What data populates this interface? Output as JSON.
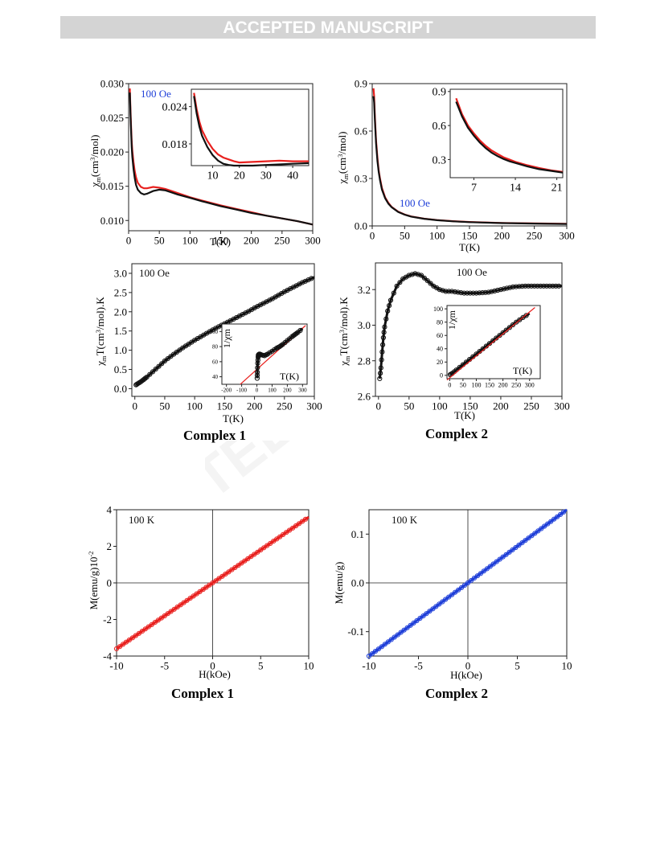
{
  "header": {
    "banner": "ACCEPTED MANUSCRIPT"
  },
  "colors": {
    "red": "#e8201e",
    "black": "#111111",
    "blue": "#1f3fd8",
    "banner_bg": "#d4d4d4",
    "watermark": "#f4f4f4"
  },
  "watermark_text": "TEL",
  "captions": {
    "mid_left": "Complex 1",
    "mid_right": "Complex 2",
    "bot_left": "Complex 1",
    "bot_right": "Complex 2"
  },
  "chart_data": [
    {
      "id": "p1",
      "type": "line",
      "xlabel": "T(K)",
      "ylabel": "χm(cm3/mol)",
      "xlim": [
        0,
        300
      ],
      "ylim": [
        0.0085,
        0.03
      ],
      "xticks": [
        0,
        50,
        100,
        150,
        200,
        250,
        300
      ],
      "yticks": [
        0.01,
        0.015,
        0.02,
        0.025,
        0.03
      ],
      "ytick_labels": [
        "0.010",
        "0.015",
        "0.020",
        "0.025",
        "0.030"
      ],
      "annotation": "100 Oe",
      "series": [
        {
          "color": "red",
          "x": [
            2,
            3,
            4,
            5,
            6,
            8,
            10,
            12,
            15,
            20,
            25,
            30,
            40,
            50,
            60,
            70,
            80,
            100,
            120,
            150,
            175,
            200,
            225,
            250,
            275,
            300
          ],
          "y": [
            0.0293,
            0.0262,
            0.0236,
            0.0216,
            0.0202,
            0.0185,
            0.0172,
            0.0163,
            0.0155,
            0.0149,
            0.0147,
            0.0147,
            0.0149,
            0.0148,
            0.0146,
            0.0143,
            0.014,
            0.0134,
            0.0129,
            0.0122,
            0.0117,
            0.0112,
            0.0107,
            0.0103,
            0.0099,
            0.0094
          ]
        },
        {
          "color": "black",
          "x": [
            2,
            3,
            4,
            5,
            6,
            8,
            10,
            12,
            15,
            20,
            25,
            30,
            40,
            50,
            60,
            70,
            80,
            100,
            120,
            150,
            175,
            200,
            225,
            250,
            275,
            300
          ],
          "y": [
            0.0287,
            0.0255,
            0.0229,
            0.0208,
            0.0193,
            0.0175,
            0.0162,
            0.0152,
            0.0145,
            0.014,
            0.0138,
            0.0139,
            0.0143,
            0.0145,
            0.0144,
            0.0141,
            0.0138,
            0.0133,
            0.0128,
            0.0121,
            0.0116,
            0.0111,
            0.0107,
            0.0103,
            0.0099,
            0.0094
          ]
        }
      ],
      "inset": {
        "xlim": [
          2,
          46
        ],
        "ylim": [
          0.0145,
          0.0268
        ],
        "xticks": [
          10,
          20,
          30,
          40
        ],
        "yticks": [
          0.018,
          0.024
        ],
        "ytick_labels": [
          "0.018",
          "0.024"
        ],
        "series": [
          {
            "color": "red",
            "x": [
              3,
              4,
              5,
              6,
              8,
              10,
              12,
              14,
              16,
              18,
              20,
              25,
              30,
              35,
              40,
              46
            ],
            "y": [
              0.0262,
              0.0236,
              0.0216,
              0.0202,
              0.0185,
              0.0172,
              0.0163,
              0.0158,
              0.0155,
              0.0152,
              0.015,
              0.0151,
              0.0152,
              0.0153,
              0.0152,
              0.0152
            ]
          },
          {
            "color": "black",
            "x": [
              3,
              4,
              5,
              6,
              8,
              10,
              12,
              14,
              16,
              18,
              20,
              25,
              30,
              35,
              40,
              46
            ],
            "y": [
              0.0257,
              0.0229,
              0.0208,
              0.0193,
              0.0175,
              0.0162,
              0.0153,
              0.0148,
              0.0146,
              0.0145,
              0.0145,
              0.0145,
              0.0146,
              0.0147,
              0.0148,
              0.0149
            ]
          }
        ]
      }
    },
    {
      "id": "p2",
      "type": "line",
      "xlabel": "T(K)",
      "ylabel": "χm(cm3/mol)",
      "xlim": [
        0,
        300
      ],
      "ylim": [
        0,
        0.9
      ],
      "xticks": [
        0,
        50,
        100,
        150,
        200,
        250,
        300
      ],
      "yticks": [
        0.0,
        0.3,
        0.6,
        0.9
      ],
      "ytick_labels": [
        "0.0",
        "0.3",
        "0.6",
        "0.9"
      ],
      "annotation": "100 Oe",
      "series": [
        {
          "color": "red",
          "x": [
            2,
            3,
            4,
            5,
            6,
            8,
            10,
            12,
            15,
            20,
            25,
            30,
            40,
            50,
            60,
            80,
            100,
            125,
            150,
            200,
            250,
            300
          ],
          "y": [
            0.87,
            0.82,
            0.71,
            0.62,
            0.54,
            0.43,
            0.35,
            0.3,
            0.24,
            0.18,
            0.145,
            0.12,
            0.09,
            0.072,
            0.06,
            0.046,
            0.037,
            0.03,
            0.025,
            0.019,
            0.016,
            0.013
          ]
        },
        {
          "color": "black",
          "x": [
            2,
            3,
            4,
            5,
            6,
            8,
            10,
            12,
            15,
            20,
            25,
            30,
            40,
            50,
            60,
            80,
            100,
            125,
            150,
            200,
            250,
            300
          ],
          "y": [
            0.82,
            0.78,
            0.68,
            0.6,
            0.52,
            0.41,
            0.34,
            0.29,
            0.23,
            0.175,
            0.14,
            0.118,
            0.088,
            0.071,
            0.059,
            0.045,
            0.036,
            0.029,
            0.024,
            0.018,
            0.015,
            0.012
          ]
        }
      ],
      "inset": {
        "xlim": [
          3,
          22
        ],
        "ylim": [
          0.14,
          0.92
        ],
        "xticks": [
          7,
          14,
          21
        ],
        "yticks": [
          0.3,
          0.6,
          0.9
        ],
        "ytick_labels": [
          "0.3",
          "0.6",
          "0.9"
        ],
        "series": [
          {
            "color": "red",
            "x": [
              4,
              5,
              6,
              7,
              8,
              9,
              10,
              11,
              12,
              13,
              14,
              16,
              18,
              20,
              22
            ],
            "y": [
              0.84,
              0.7,
              0.6,
              0.53,
              0.47,
              0.42,
              0.38,
              0.35,
              0.32,
              0.3,
              0.28,
              0.25,
              0.225,
              0.205,
              0.19
            ]
          },
          {
            "color": "black",
            "x": [
              4,
              5,
              6,
              7,
              8,
              9,
              10,
              11,
              12,
              13,
              14,
              16,
              18,
              20,
              22
            ],
            "y": [
              0.81,
              0.68,
              0.58,
              0.51,
              0.45,
              0.4,
              0.36,
              0.33,
              0.305,
              0.285,
              0.27,
              0.24,
              0.215,
              0.2,
              0.185
            ]
          }
        ]
      }
    },
    {
      "id": "p3",
      "type": "scatter",
      "xlabel": "T(K)",
      "ylabel": "χmT(cm3/mol).K",
      "xlim": [
        -5,
        300
      ],
      "ylim": [
        -0.2,
        3.25
      ],
      "xticks": [
        0,
        50,
        100,
        150,
        200,
        250,
        300
      ],
      "yticks": [
        0.0,
        0.5,
        1.0,
        1.5,
        2.0,
        2.5,
        3.0
      ],
      "ytick_labels": [
        "0.0",
        "0.5",
        "1.0",
        "1.5",
        "2.0",
        "2.5",
        "3.0"
      ],
      "annotation": "100 Oe",
      "series": [
        {
          "color": "black",
          "x": [
            2,
            5,
            10,
            15,
            20,
            30,
            40,
            50,
            60,
            70,
            80,
            90,
            100,
            110,
            120,
            130,
            140,
            150,
            160,
            170,
            180,
            190,
            200,
            210,
            220,
            230,
            240,
            250,
            260,
            270,
            280,
            290,
            300
          ],
          "y": [
            0.1,
            0.13,
            0.18,
            0.24,
            0.3,
            0.44,
            0.58,
            0.72,
            0.84,
            0.95,
            1.06,
            1.16,
            1.26,
            1.35,
            1.44,
            1.53,
            1.61,
            1.69,
            1.77,
            1.85,
            1.93,
            2.01,
            2.1,
            2.18,
            2.26,
            2.34,
            2.43,
            2.52,
            2.6,
            2.68,
            2.76,
            2.83,
            2.9
          ]
        }
      ],
      "inset": {
        "xlabel": "T(K)",
        "ylabel": "1/χm",
        "xlim": [
          -230,
          330
        ],
        "ylim": [
          30,
          110
        ],
        "xticks": [
          -200,
          -100,
          0,
          100,
          200,
          300
        ],
        "yticks": [
          40,
          60,
          80,
          100
        ],
        "ytick_labels": [
          "40",
          "60",
          "80",
          "100"
        ],
        "fit": {
          "x": [
            -230,
            320
          ],
          "y": [
            8,
            108
          ]
        },
        "series": [
          {
            "color": "black",
            "x": [
              2,
              3,
              5,
              8,
              10,
              15,
              20,
              30,
              50,
              70,
              100,
              130,
              150,
              170,
              200,
              230,
              250,
              270,
              300
            ],
            "y": [
              38,
              46,
              58,
              66,
              69,
              70,
              70,
              69,
              68,
              70,
              74,
              78,
              80,
              83,
              88,
              93,
              96,
              99,
              104
            ]
          }
        ]
      }
    },
    {
      "id": "p4",
      "type": "scatter",
      "xlabel": "T(K)",
      "ylabel": "χmT(cm3/mol).K",
      "xlim": [
        -5,
        300
      ],
      "ylim": [
        2.6,
        3.35
      ],
      "xticks": [
        0,
        50,
        100,
        150,
        200,
        250,
        300
      ],
      "yticks": [
        2.6,
        2.8,
        3.0,
        3.2
      ],
      "ytick_labels": [
        "2.6",
        "2.8",
        "3.0",
        "3.2"
      ],
      "annotation": "100 Oe",
      "series": [
        {
          "color": "black",
          "x": [
            2,
            4,
            6,
            8,
            10,
            15,
            20,
            30,
            40,
            50,
            60,
            70,
            80,
            90,
            100,
            110,
            120,
            140,
            160,
            180,
            200,
            220,
            240,
            260,
            280,
            300
          ],
          "y": [
            2.7,
            2.76,
            2.85,
            2.93,
            2.99,
            3.08,
            3.14,
            3.22,
            3.26,
            3.28,
            3.29,
            3.28,
            3.25,
            3.22,
            3.2,
            3.19,
            3.19,
            3.18,
            3.18,
            3.185,
            3.2,
            3.215,
            3.22,
            3.22,
            3.22,
            3.22
          ]
        }
      ],
      "inset": {
        "xlabel": "T(K)",
        "ylabel": "1/χm",
        "xlim": [
          -10,
          340
        ],
        "ylim": [
          -5,
          105
        ],
        "xticks": [
          0,
          50,
          100,
          150,
          200,
          250,
          300
        ],
        "yticks": [
          0,
          20,
          40,
          60,
          80,
          100
        ],
        "ytick_labels": [
          "0",
          "20",
          "40",
          "60",
          "80",
          "100"
        ],
        "fit": {
          "x": [
            -10,
            320
          ],
          "y": [
            -7,
            102
          ]
        },
        "series": [
          {
            "color": "black",
            "x": [
              2,
              10,
              25,
              50,
              75,
              100,
              125,
              150,
              175,
              200,
              225,
              250,
              275,
              300
            ],
            "y": [
              1,
              3,
              8,
              16,
              24,
              32,
              40,
              48,
              56,
              64,
              72,
              80,
              87,
              93
            ]
          }
        ]
      }
    },
    {
      "id": "p5",
      "type": "scatter",
      "xlabel": "H(kOe)",
      "ylabel": "M(emu/g)10-2",
      "xlim": [
        -10,
        10
      ],
      "ylim": [
        -4,
        4
      ],
      "xticks": [
        -10,
        -5,
        0,
        5,
        10
      ],
      "xtick_labels": [
        "-10",
        "-5",
        "0",
        "5",
        "10"
      ],
      "yticks": [
        -4,
        -2,
        0,
        2,
        4
      ],
      "ytick_labels": [
        "-4",
        "-2",
        "0",
        "2",
        "4"
      ],
      "annotation": "100 K",
      "series": [
        {
          "color": "red",
          "x": [
            -10,
            10
          ],
          "y": [
            -3.6,
            3.6
          ]
        }
      ]
    },
    {
      "id": "p6",
      "type": "scatter",
      "xlabel": "H(kOe)",
      "ylabel": "M(emu/g)",
      "xlim": [
        -10,
        10
      ],
      "ylim": [
        -0.15,
        0.15
      ],
      "xticks": [
        -10,
        -5,
        0,
        5,
        10
      ],
      "xtick_labels": [
        "-10",
        "-5",
        "0",
        "5",
        "10"
      ],
      "yticks": [
        -0.1,
        0.0,
        0.1
      ],
      "ytick_labels": [
        "-0.1",
        "0.0",
        "0.1"
      ],
      "annotation": "100 K",
      "series": [
        {
          "color": "blue",
          "x": [
            -10,
            10
          ],
          "y": [
            -0.15,
            0.15
          ]
        }
      ]
    }
  ]
}
